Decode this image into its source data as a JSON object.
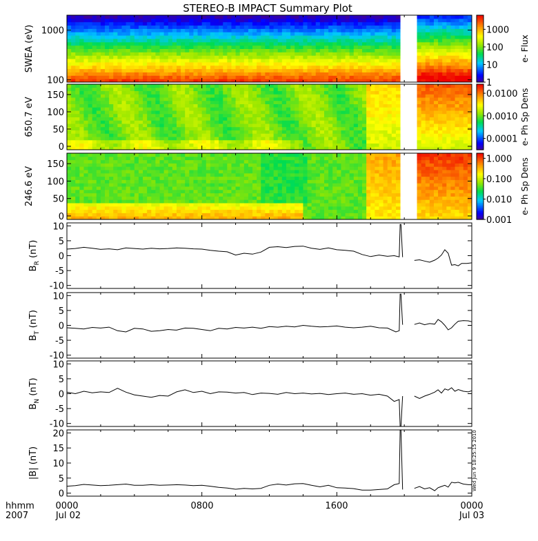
{
  "chart_data": {
    "type": "line",
    "title": "STEREO-B IMPACT Summary Plot",
    "time_axis": {
      "row1_labels": [
        "hhmm",
        "0000",
        "0800",
        "1600",
        "0000"
      ],
      "row2_labels": [
        "2007",
        "Jul 02",
        "Jul 03"
      ],
      "range_hours": [
        0,
        24
      ],
      "major_ticks_hours": [
        0,
        8,
        16,
        24
      ]
    },
    "stamp": "Wed Jun 9 18:25:15 2010",
    "data_gaps_hours": [
      [
        19.9,
        20.6
      ]
    ],
    "spectrograms": [
      {
        "name": "swea",
        "ylabel": "SWEA (eV)",
        "yscale": "log",
        "ylim": [
          90,
          2000
        ],
        "yticks": [
          "1000",
          "100"
        ],
        "yticks_values": [
          1000,
          100
        ],
        "colorbar_label": "e- Flux",
        "colorbar_ticks": [
          "1000",
          "100",
          "10",
          "1"
        ],
        "colorbar_log_range": [
          0,
          3.8
        ]
      },
      {
        "name": "pad650",
        "ylabel": "650.7 eV",
        "yscale": "linear",
        "ylim": [
          -10,
          180
        ],
        "yticks": [
          "150",
          "100",
          "50",
          "0"
        ],
        "yticks_values": [
          150,
          100,
          50,
          0
        ],
        "colorbar_label": "e- Ph Sp Dens",
        "colorbar_ticks": [
          "0.0100",
          "0.0010",
          "0.0001"
        ],
        "colorbar_log_range": [
          -4.5,
          -1.6
        ]
      },
      {
        "name": "pad246",
        "ylabel": "246.6 eV",
        "yscale": "linear",
        "ylim": [
          -10,
          180
        ],
        "yticks": [
          "150",
          "100",
          "50",
          "0"
        ],
        "yticks_values": [
          150,
          100,
          50,
          0
        ],
        "colorbar_label": "e- Ph Sp Dens",
        "colorbar_ticks": [
          "1.000",
          "0.100",
          "0.010",
          "0.001"
        ],
        "colorbar_log_range": [
          -3,
          0.25
        ]
      }
    ],
    "line_panels": [
      {
        "name": "BR",
        "ylabel_main": "B",
        "ylabel_sub": "R",
        "ylabel_unit": " (nT)",
        "ylim": [
          -11,
          11
        ],
        "yticks": [
          "10",
          "5",
          "0",
          "-5",
          "-10"
        ],
        "yticks_values": [
          10,
          5,
          0,
          -5,
          -10
        ],
        "series": {
          "x_hours": [
            0,
            0.5,
            1.0,
            1.5,
            2.0,
            2.5,
            3.0,
            3.5,
            4.0,
            4.5,
            5.0,
            5.5,
            6.0,
            6.5,
            7.0,
            7.5,
            8.0,
            8.5,
            9.0,
            9.5,
            10.0,
            10.5,
            11.0,
            11.5,
            12.0,
            12.5,
            13.0,
            13.5,
            14.0,
            14.5,
            15.0,
            15.5,
            16.0,
            16.5,
            17.0,
            17.5,
            18.0,
            18.5,
            19.0,
            19.4,
            19.7,
            19.75,
            19.8,
            19.9
          ],
          "values": [
            2.2,
            2.4,
            2.8,
            2.5,
            2.1,
            2.3,
            2.0,
            2.6,
            2.4,
            2.2,
            2.5,
            2.3,
            2.4,
            2.6,
            2.5,
            2.3,
            2.2,
            1.8,
            1.5,
            1.3,
            0.2,
            0.8,
            0.5,
            1.2,
            2.8,
            3.0,
            2.7,
            3.1,
            3.2,
            2.5,
            2.1,
            2.6,
            2.0,
            1.8,
            1.5,
            0.4,
            -0.3,
            0.2,
            -0.2,
            0.0,
            -0.4,
            10.5,
            10.5,
            -0.5
          ]
        },
        "series2": {
          "x_hours": [
            20.6,
            20.9,
            21.2,
            21.5,
            21.8,
            22.0,
            22.2,
            22.4,
            22.6,
            22.8,
            23.0,
            23.2,
            23.4,
            23.7,
            24.0
          ],
          "values": [
            -1.6,
            -1.4,
            -1.8,
            -2.2,
            -1.5,
            -0.8,
            0.2,
            2.0,
            0.8,
            -3.2,
            -3.0,
            -3.4,
            -2.6,
            -2.6,
            -2.4
          ]
        }
      },
      {
        "name": "BT",
        "ylabel_main": "B",
        "ylabel_sub": "T",
        "ylabel_unit": " (nT)",
        "ylim": [
          -11,
          11
        ],
        "yticks": [
          "10",
          "5",
          "0",
          "-5",
          "-10"
        ],
        "yticks_values": [
          10,
          5,
          0,
          -5,
          -10
        ],
        "series": {
          "x_hours": [
            0,
            0.5,
            1.0,
            1.5,
            2.0,
            2.5,
            3.0,
            3.5,
            4.0,
            4.5,
            5.0,
            5.5,
            6.0,
            6.5,
            7.0,
            7.5,
            8.0,
            8.5,
            9.0,
            9.5,
            10.0,
            10.5,
            11.0,
            11.5,
            12.0,
            12.5,
            13.0,
            13.5,
            14.0,
            14.5,
            15.0,
            15.5,
            16.0,
            16.5,
            17.0,
            17.5,
            18.0,
            18.5,
            19.0,
            19.5,
            19.7,
            19.75,
            19.8,
            19.9
          ],
          "values": [
            -0.8,
            -1.0,
            -1.2,
            -0.7,
            -0.9,
            -0.6,
            -1.8,
            -2.2,
            -1.0,
            -1.2,
            -2.0,
            -1.8,
            -1.4,
            -1.6,
            -0.9,
            -1.0,
            -1.4,
            -1.8,
            -1.0,
            -1.2,
            -0.7,
            -0.9,
            -0.6,
            -1.0,
            -0.4,
            -0.6,
            -0.3,
            -0.5,
            0.0,
            -0.3,
            -0.5,
            -0.4,
            -0.2,
            -0.6,
            -0.8,
            -0.6,
            -0.3,
            -0.8,
            -0.9,
            -2.2,
            -1.8,
            10.5,
            10.5,
            0.2
          ]
        },
        "series2": {
          "x_hours": [
            20.6,
            20.9,
            21.2,
            21.5,
            21.8,
            22.0,
            22.2,
            22.4,
            22.6,
            22.8,
            23.0,
            23.2,
            23.5,
            23.8,
            24.0
          ],
          "values": [
            0.3,
            0.8,
            0.2,
            0.6,
            0.4,
            2.0,
            1.2,
            0.0,
            -1.5,
            -0.8,
            0.4,
            1.4,
            1.6,
            1.5,
            1.2
          ]
        }
      },
      {
        "name": "BN",
        "ylabel_main": "B",
        "ylabel_sub": "N",
        "ylabel_unit": " (nT)",
        "ylim": [
          -11,
          11
        ],
        "yticks": [
          "10",
          "5",
          "0",
          "-5",
          "-10"
        ],
        "yticks_values": [
          10,
          5,
          0,
          -5,
          -10
        ],
        "series": {
          "x_hours": [
            0,
            0.5,
            1.0,
            1.5,
            2.0,
            2.5,
            3.0,
            3.5,
            4.0,
            4.5,
            5.0,
            5.5,
            6.0,
            6.5,
            7.0,
            7.5,
            8.0,
            8.5,
            9.0,
            9.5,
            10.0,
            10.5,
            11.0,
            11.5,
            12.0,
            12.5,
            13.0,
            13.5,
            14.0,
            14.5,
            15.0,
            15.5,
            16.0,
            16.5,
            17.0,
            17.5,
            18.0,
            18.5,
            19.0,
            19.4,
            19.7,
            19.75,
            19.8,
            19.9
          ],
          "values": [
            0.5,
            0.0,
            0.8,
            0.3,
            0.6,
            0.4,
            1.8,
            0.5,
            -0.4,
            -0.8,
            -1.2,
            -0.6,
            -0.8,
            0.6,
            1.3,
            0.4,
            0.8,
            0.0,
            0.6,
            0.5,
            0.2,
            0.4,
            -0.3,
            0.2,
            0.1,
            -0.2,
            0.4,
            0.0,
            0.2,
            -0.1,
            0.1,
            -0.3,
            0.0,
            0.2,
            -0.2,
            0.0,
            -0.5,
            -0.2,
            -0.8,
            -2.6,
            -2.0,
            -11.0,
            -11.0,
            -0.8
          ]
        },
        "series2": {
          "x_hours": [
            20.6,
            20.9,
            21.2,
            21.5,
            21.8,
            22.0,
            22.2,
            22.4,
            22.6,
            22.8,
            23.0,
            23.2,
            23.5,
            23.8,
            24.0
          ],
          "values": [
            -0.8,
            -1.6,
            -0.8,
            -0.2,
            0.5,
            1.3,
            0.2,
            1.6,
            1.2,
            2.0,
            0.8,
            1.4,
            0.8,
            0.6,
            1.0
          ]
        }
      },
      {
        "name": "Bmag",
        "ylabel_main": "|B|",
        "ylabel_sub": "",
        "ylabel_unit": " (nT)",
        "ylim": [
          -1,
          21
        ],
        "yticks": [
          "20",
          "15",
          "10",
          "5",
          "0"
        ],
        "yticks_values": [
          20,
          15,
          10,
          5,
          0
        ],
        "series": {
          "x_hours": [
            0,
            0.5,
            1.0,
            1.5,
            2.0,
            2.5,
            3.0,
            3.5,
            4.0,
            4.5,
            5.0,
            5.5,
            6.0,
            6.5,
            7.0,
            7.5,
            8.0,
            8.5,
            9.0,
            9.5,
            10.0,
            10.5,
            11.0,
            11.5,
            12.0,
            12.5,
            13.0,
            13.5,
            14.0,
            14.5,
            15.0,
            15.5,
            16.0,
            16.5,
            17.0,
            17.5,
            18.0,
            18.5,
            19.0,
            19.4,
            19.7,
            19.75,
            19.8,
            19.9
          ],
          "values": [
            2.3,
            2.5,
            2.9,
            2.7,
            2.5,
            2.6,
            2.8,
            3.0,
            2.6,
            2.6,
            2.8,
            2.6,
            2.7,
            2.8,
            2.7,
            2.5,
            2.6,
            2.3,
            1.9,
            1.7,
            1.3,
            1.6,
            1.4,
            1.6,
            2.6,
            3.0,
            2.7,
            3.1,
            3.2,
            2.6,
            2.1,
            2.6,
            1.8,
            1.7,
            1.5,
            1.0,
            1.0,
            1.2,
            1.4,
            2.8,
            3.2,
            21.0,
            21.0,
            1.2
          ]
        },
        "series2": {
          "x_hours": [
            20.6,
            20.9,
            21.2,
            21.5,
            21.8,
            22.0,
            22.2,
            22.4,
            22.6,
            22.8,
            23.0,
            23.2,
            23.5,
            23.8,
            24.0
          ],
          "values": [
            1.6,
            2.2,
            1.4,
            1.8,
            0.8,
            1.8,
            2.2,
            2.6,
            2.0,
            3.6,
            3.4,
            3.6,
            3.0,
            2.8,
            2.8
          ]
        }
      }
    ]
  }
}
